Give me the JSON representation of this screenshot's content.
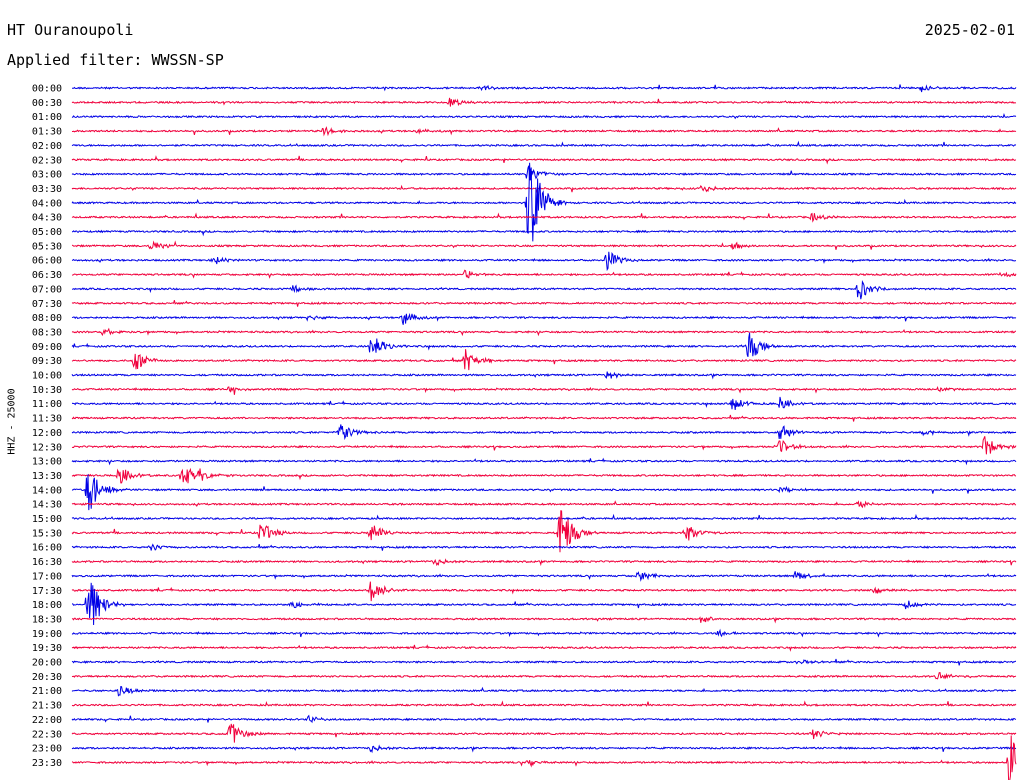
{
  "header": {
    "station": "HT Ouranoupoli",
    "date": "2025-02-01",
    "filter": "Applied filter: WWSSN-SP"
  },
  "chart_data": {
    "type": "line",
    "title": "HT Ouranoupoli",
    "ylabel": "HHZ - 25000",
    "row_labels": [
      "00:00",
      "00:30",
      "01:00",
      "01:30",
      "02:00",
      "02:30",
      "03:00",
      "03:30",
      "04:00",
      "04:30",
      "05:00",
      "05:30",
      "06:00",
      "06:30",
      "07:00",
      "07:30",
      "08:00",
      "08:30",
      "09:00",
      "09:30",
      "10:00",
      "10:30",
      "11:00",
      "11:30",
      "12:00",
      "12:30",
      "13:00",
      "13:30",
      "14:00",
      "14:30",
      "15:00",
      "15:30",
      "16:00",
      "16:30",
      "17:00",
      "17:30",
      "18:00",
      "18:30",
      "19:00",
      "19:30",
      "20:00",
      "20:30",
      "21:00",
      "21:30",
      "22:00",
      "22:30",
      "23:00",
      "23:30"
    ],
    "colors": [
      "#0000e6",
      "#f0003c"
    ],
    "trace_minutes": 30,
    "events": [
      [
        0,
        13,
        0.25
      ],
      [
        0,
        27,
        0.3
      ],
      [
        1,
        12,
        0.4
      ],
      [
        3,
        8,
        0.35
      ],
      [
        3,
        11,
        0.2
      ],
      [
        6,
        14.5,
        0.8
      ],
      [
        7,
        20,
        0.35
      ],
      [
        8,
        14.5,
        5.0
      ],
      [
        9,
        23.5,
        0.4
      ],
      [
        11,
        2.5,
        0.5
      ],
      [
        11,
        21,
        0.35
      ],
      [
        12,
        17,
        0.9
      ],
      [
        12,
        4.5,
        0.35
      ],
      [
        13,
        12.5,
        0.35
      ],
      [
        13,
        29.5,
        0.25
      ],
      [
        14,
        25,
        1.0
      ],
      [
        14,
        7,
        0.3
      ],
      [
        16,
        10.5,
        0.7
      ],
      [
        16,
        7.5,
        0.25
      ],
      [
        17,
        1,
        0.35
      ],
      [
        18,
        9.5,
        1.0
      ],
      [
        18,
        21.5,
        1.3
      ],
      [
        19,
        2,
        0.9
      ],
      [
        19,
        12.5,
        1.0
      ],
      [
        20,
        17,
        0.35
      ],
      [
        21,
        5,
        0.25
      ],
      [
        21,
        27.5,
        0.3
      ],
      [
        22,
        21,
        0.7
      ],
      [
        22,
        22.5,
        0.5
      ],
      [
        24,
        8.5,
        0.9
      ],
      [
        24,
        22.5,
        0.8
      ],
      [
        24,
        27,
        0.3
      ],
      [
        25,
        22.5,
        0.6
      ],
      [
        25,
        29,
        0.9
      ],
      [
        27,
        1.5,
        0.8
      ],
      [
        27,
        4,
        0.6
      ],
      [
        27,
        3.5,
        1.2
      ],
      [
        28,
        0.5,
        2.2
      ],
      [
        28,
        22.5,
        0.3
      ],
      [
        29,
        25,
        0.3
      ],
      [
        31,
        6,
        0.9
      ],
      [
        31,
        9.5,
        0.8
      ],
      [
        31,
        15.5,
        2.6
      ],
      [
        31,
        19.5,
        0.8
      ],
      [
        32,
        2.5,
        0.3
      ],
      [
        33,
        11.5,
        0.35
      ],
      [
        34,
        18,
        0.5
      ],
      [
        34,
        23,
        0.5
      ],
      [
        35,
        9.5,
        0.9
      ],
      [
        35,
        25.5,
        0.3
      ],
      [
        36,
        0.5,
        3.0
      ],
      [
        36,
        7,
        0.35
      ],
      [
        36,
        26.5,
        0.35
      ],
      [
        37,
        20,
        0.3
      ],
      [
        38,
        20.5,
        0.3
      ],
      [
        40,
        23,
        0.3
      ],
      [
        41,
        27.5,
        0.35
      ],
      [
        42,
        1.5,
        0.6
      ],
      [
        44,
        7.5,
        0.35
      ],
      [
        45,
        5,
        1.2
      ],
      [
        45,
        23.5,
        0.5
      ],
      [
        46,
        9.5,
        0.3
      ],
      [
        47,
        14.5,
        0.3
      ],
      [
        47,
        29.8,
        3.2
      ]
    ]
  }
}
